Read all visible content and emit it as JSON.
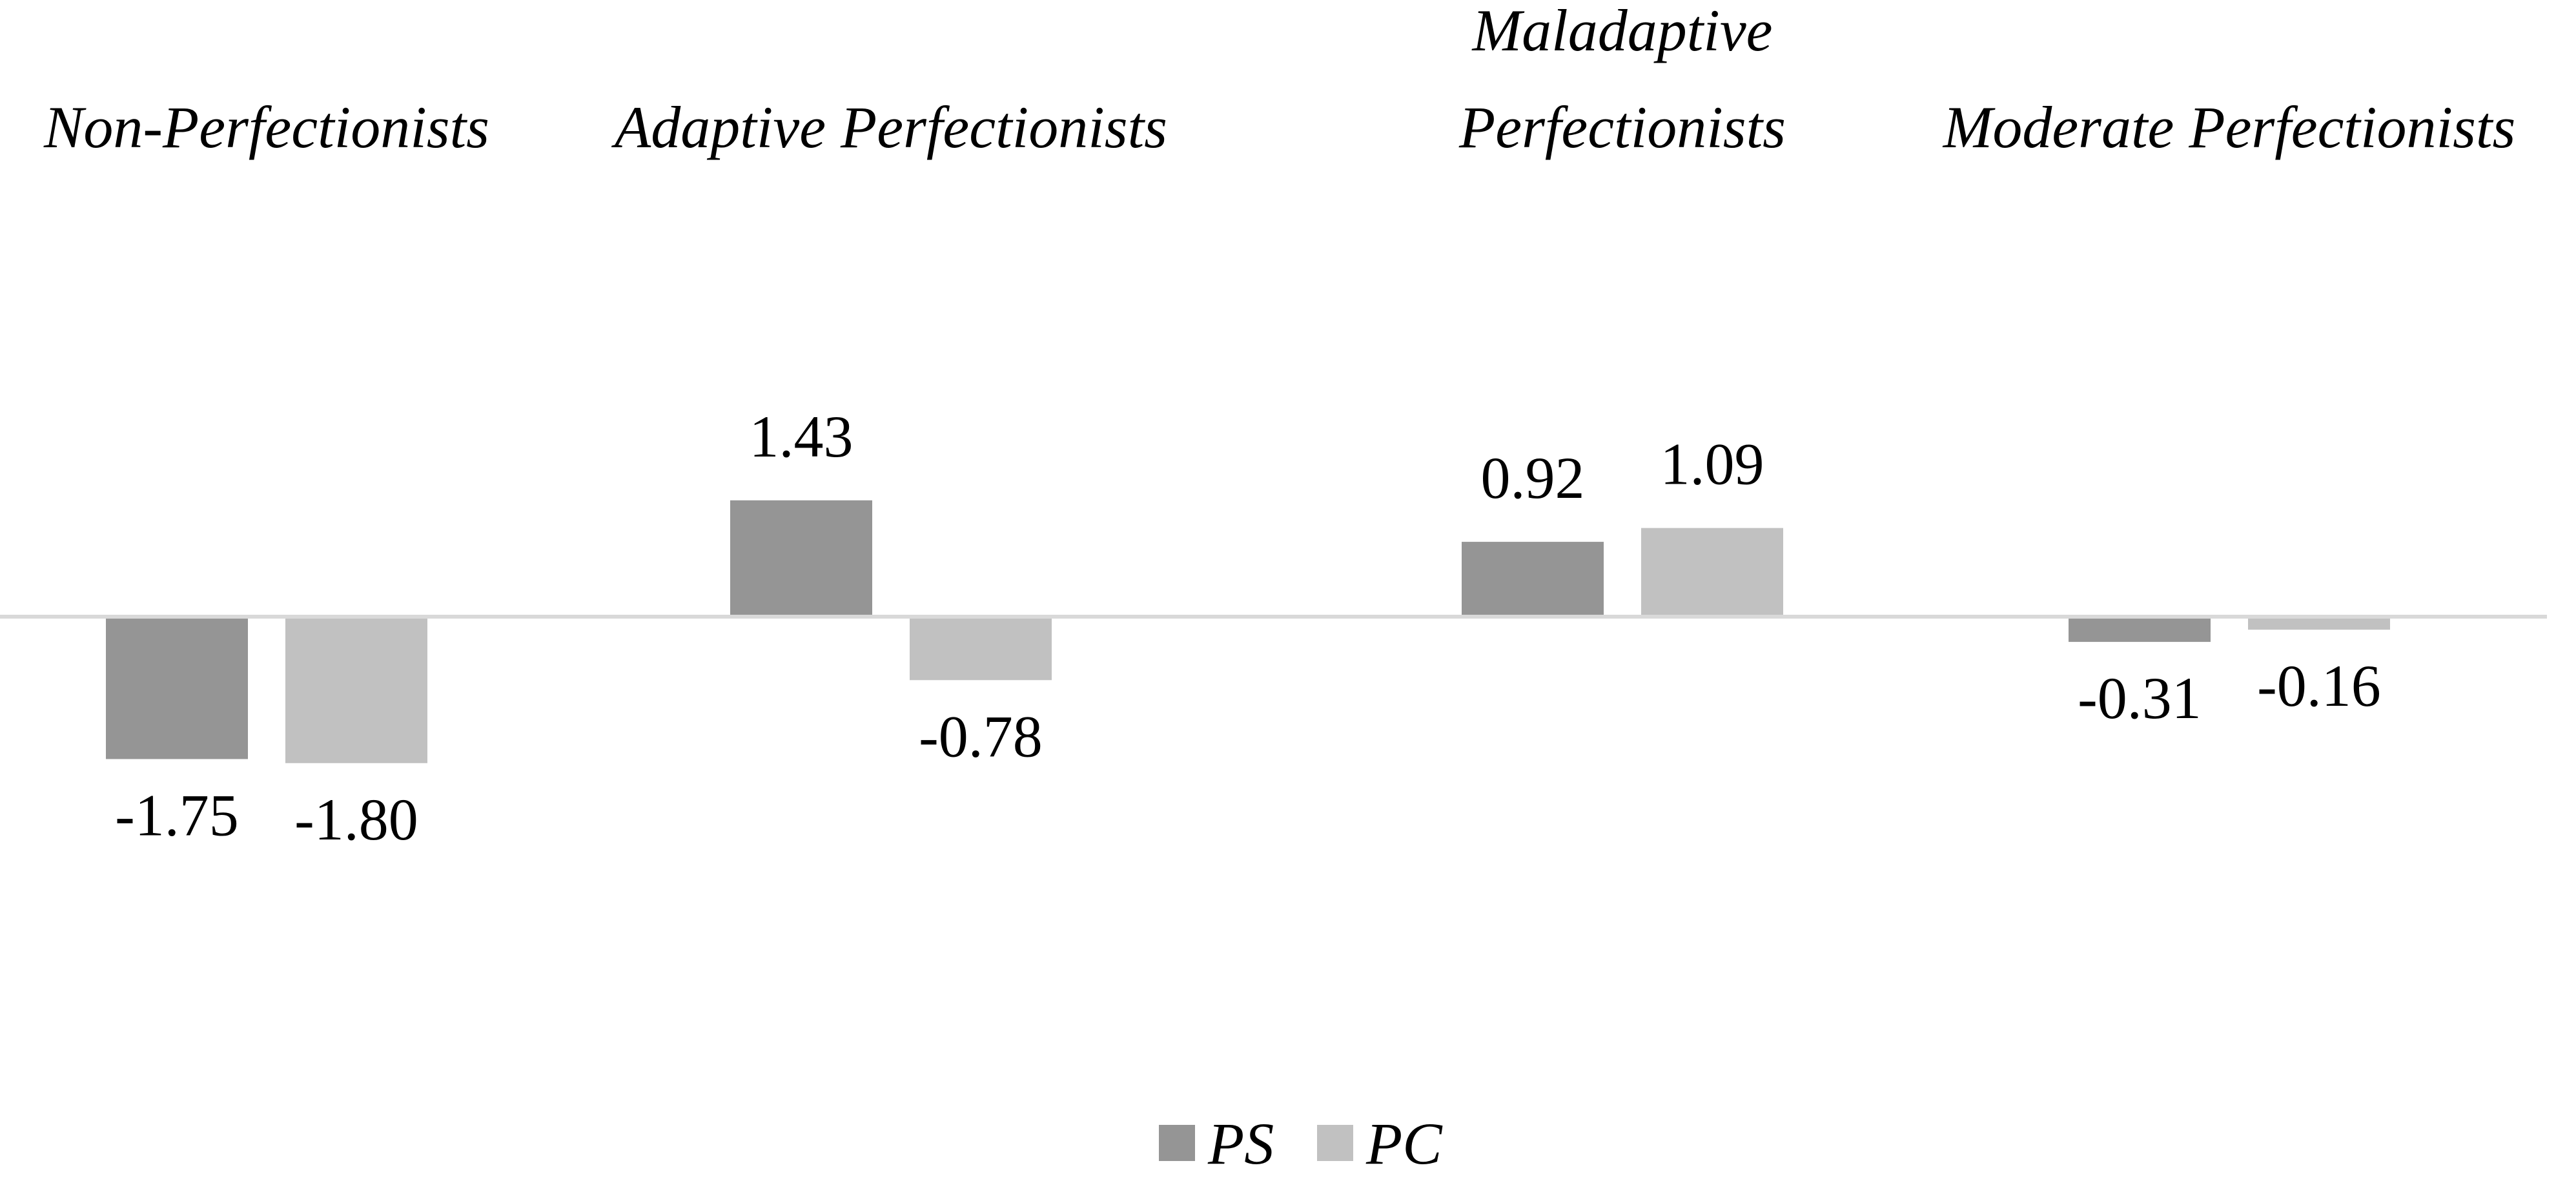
{
  "chart_data": {
    "type": "bar",
    "categories": [
      [
        "Non-Perfectionists"
      ],
      [
        "Adaptive Perfectionists"
      ],
      [
        "Maladaptive",
        "Perfectionists"
      ],
      [
        "Moderate Perfectionists"
      ]
    ],
    "series": [
      {
        "name": "PS",
        "color": "#959595",
        "values": [
          -1.75,
          1.43,
          0.92,
          -0.31
        ],
        "labels": [
          "-1.75",
          "1.43",
          "0.92",
          "-0.31"
        ]
      },
      {
        "name": "PC",
        "color": "#c1c1c1",
        "values": [
          -1.8,
          -0.78,
          1.09,
          -0.16
        ],
        "labels": [
          "-1.80",
          "-0.78",
          "1.09",
          "-0.16"
        ]
      }
    ],
    "title": "",
    "xlabel": "",
    "ylabel": "",
    "ylim": [
      -2.0,
      1.6
    ],
    "grid": false,
    "legend_position": "bottom",
    "axis_color": "#d9d9d9"
  }
}
